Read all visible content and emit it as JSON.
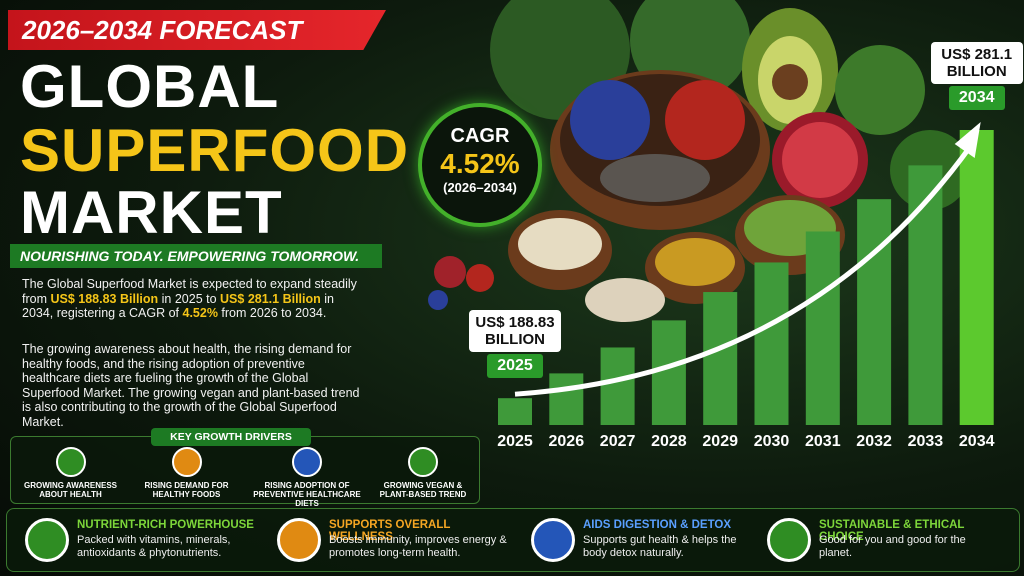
{
  "header": {
    "badge": "2026–2034 FORECAST",
    "title_lines": [
      "GLOBAL",
      "SUPERFOOD",
      "MARKET"
    ],
    "tagline": "NOURISHING TODAY. EMPOWERING TOMORROW."
  },
  "description": {
    "paragraph_1": [
      "The Global Superfood Market is expected to expand steadily from ",
      "US$ 188.83 Billion",
      " in 2025 to ",
      "US$ 281.1 Billion",
      " in 2034, registering a CAGR of ",
      "4.52%",
      " from 2026 to 2034."
    ],
    "paragraph_2": "The growing awareness about health, the rising demand for healthy foods, and the rising adoption of preventive healthcare diets are fueling the growth of the Global Superfood Market. The growing vegan and plant-based trend is also contributing to the growth of the Global Superfood Market."
  },
  "cagr": {
    "label": "CAGR",
    "value": "4.52%",
    "period": "(2026–2034)"
  },
  "key_growth_drivers": {
    "title": "KEY GROWTH DRIVERS",
    "items": [
      "GROWING AWARENESS ABOUT HEALTH",
      "RISING DEMAND FOR HEALTHY FOODS",
      "RISING ADOPTION OF PREVENTIVE HEALTHCARE DIETS",
      "GROWING VEGAN & PLANT-BASED TREND"
    ]
  },
  "features": [
    {
      "title": "NUTRIENT-RICH POWERHOUSE",
      "text": "Packed with vitamins, minerals, antioxidants & phytonutrients."
    },
    {
      "title": "SUPPORTS OVERALL WELLNESS",
      "text": "Boosts immunity, improves energy & promotes long-term health."
    },
    {
      "title": "AIDS DIGESTION & DETOX",
      "text": "Supports gut health & helps the body detox naturally."
    },
    {
      "title": "SUSTAINABLE & ETHICAL CHOICE",
      "text": "Good for you and good for the planet."
    }
  ],
  "chart_data": {
    "type": "bar",
    "categories": [
      "2025",
      "2026",
      "2027",
      "2028",
      "2029",
      "2030",
      "2031",
      "2032",
      "2033",
      "2034"
    ],
    "values": [
      188.83,
      197.36,
      206.28,
      215.6,
      225.35,
      235.53,
      246.18,
      257.3,
      268.93,
      281.1
    ],
    "value_labels": [
      "US$ 188.83 BILLION",
      null,
      null,
      null,
      null,
      null,
      null,
      null,
      null,
      "US$ 281.1 BILLION"
    ],
    "color": "#3f9a3a"
  }
}
